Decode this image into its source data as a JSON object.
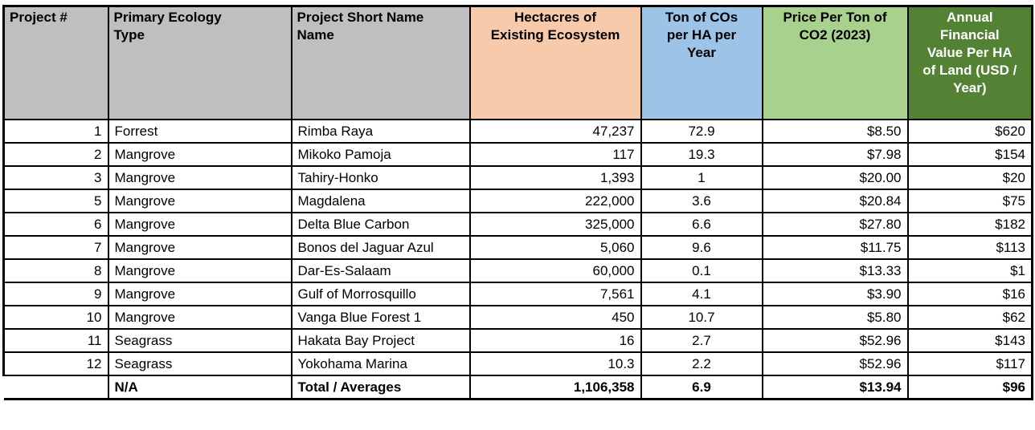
{
  "colors": {
    "header_gray": "#bfbfbf",
    "header_peach": "#f8caac",
    "header_blue": "#9dc3e6",
    "header_light_green": "#a9d18e",
    "header_dark_green": "#538235",
    "header_dark_green_text": "#ffffff",
    "border": "#000000",
    "body_text": "#000000"
  },
  "table": {
    "headers": [
      {
        "id": "project-number",
        "label": "Project #",
        "bg": "#bfbfbf",
        "fg": "#000000"
      },
      {
        "id": "primary-ecology-type",
        "label": "Primary Ecology\nType",
        "bg": "#bfbfbf",
        "fg": "#000000"
      },
      {
        "id": "project-short-name",
        "label": "Project Short Name\nName",
        "bg": "#bfbfbf",
        "fg": "#000000"
      },
      {
        "id": "hectacres-existing-ecosystem",
        "label": "Hectacres of\nExisting Ecosystem",
        "bg": "#f8caac",
        "fg": "#000000"
      },
      {
        "id": "ton-cos-per-ha-year",
        "label": "Ton of COs\nper HA per\nYear",
        "bg": "#9dc3e6",
        "fg": "#000000"
      },
      {
        "id": "price-per-ton-co2-2023",
        "label": "Price Per Ton of\nCO2 (2023)",
        "bg": "#a9d18e",
        "fg": "#000000"
      },
      {
        "id": "annual-financial-value",
        "label": "Annual\nFinancial\nValue Per HA\nof Land (USD /\nYear)",
        "bg": "#538235",
        "fg": "#ffffff"
      }
    ],
    "rows": [
      [
        "1",
        "Forrest",
        "Rimba Raya",
        "47,237",
        "72.9",
        "$8.50",
        "$620"
      ],
      [
        "2",
        "Mangrove",
        "Mikoko Pamoja",
        "117",
        "19.3",
        "$7.98",
        "$154"
      ],
      [
        "3",
        "Mangrove",
        "Tahiry-Honko",
        "1,393",
        "1",
        "$20.00",
        "$20"
      ],
      [
        "5",
        "Mangrove",
        "Magdalena",
        "222,000",
        "3.6",
        "$20.84",
        "$75"
      ],
      [
        "6",
        "Mangrove",
        "Delta Blue Carbon",
        "325,000",
        "6.6",
        "$27.80",
        "$182"
      ],
      [
        "7",
        "Mangrove",
        "Bonos del Jaguar Azul",
        "5,060",
        "9.6",
        "$11.75",
        "$113"
      ],
      [
        "8",
        "Mangrove",
        "Dar-Es-Salaam",
        "60,000",
        "0.1",
        "$13.33",
        "$1"
      ],
      [
        "9",
        "Mangrove",
        "Gulf of Morrosquillo",
        "7,561",
        "4.1",
        "$3.90",
        "$16"
      ],
      [
        "10",
        "Mangrove",
        "Vanga Blue Forest 1",
        "450",
        "10.7",
        "$5.80",
        "$62"
      ],
      [
        "11",
        "Seagrass",
        "Hakata Bay Project",
        "16",
        "2.7",
        "$52.96",
        "$143"
      ],
      [
        "12",
        "Seagrass",
        "Yokohama Marina",
        "10.3",
        "2.2",
        "$52.96",
        "$117"
      ]
    ],
    "total_row": [
      "",
      "N/A",
      "Total / Averages",
      "1,106,358",
      "6.9",
      "$13.94",
      "$96"
    ]
  }
}
